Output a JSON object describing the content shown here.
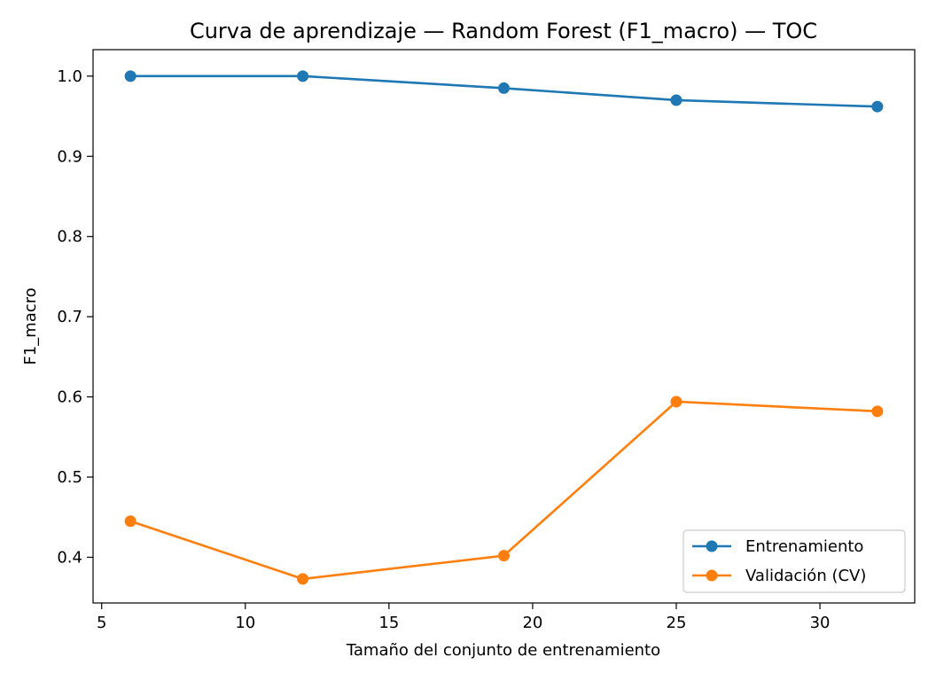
{
  "chart_data": {
    "type": "line",
    "title": "Curva de aprendizaje — Random Forest (F1_macro) — TOC",
    "xlabel": "Tamaño del conjunto de entrenamiento",
    "ylabel": "F1_macro",
    "xlim": [
      4.7,
      33.3
    ],
    "ylim": [
      0.343,
      1.033
    ],
    "xticks": [
      5,
      10,
      15,
      20,
      25,
      30
    ],
    "yticks": [
      0.4,
      0.5,
      0.6,
      0.7,
      0.8,
      0.9,
      1.0
    ],
    "x": [
      6,
      12,
      19,
      25,
      32
    ],
    "series": [
      {
        "name": "Entrenamiento",
        "color": "#1f77b4",
        "values": [
          1.0,
          1.0,
          0.985,
          0.97,
          0.962
        ]
      },
      {
        "name": "Validación (CV)",
        "color": "#ff7f0e",
        "values": [
          0.445,
          0.373,
          0.402,
          0.594,
          0.582
        ]
      }
    ],
    "grid": false,
    "legend_position": "lower-right",
    "marker": "circle"
  }
}
